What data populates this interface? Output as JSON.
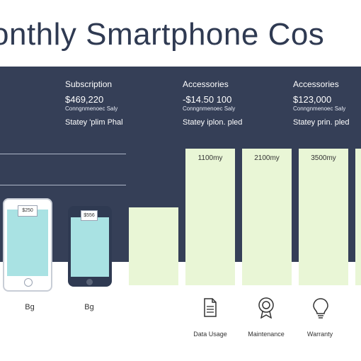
{
  "chart_data": {
    "type": "bar",
    "title": "onthly Smartphone Cos",
    "columns": [
      {
        "label": "Subscription",
        "amount": "$469,220",
        "note": "Conngnmenoec Saly",
        "sub": "Statey 'plim Phal"
      },
      {
        "label": "Accessories",
        "amount": "-$14.50 100",
        "note": "Conngnmenoec Saly",
        "sub": "Statey iplon. pled"
      },
      {
        "label": "Accessories",
        "amount": "$123,000",
        "note": "Conngnmenoec Saly",
        "sub": "Statey prin. pled"
      }
    ],
    "categories": [
      "",
      "1100my",
      "2100my",
      "3500my",
      ""
    ],
    "bar_labels": [
      "",
      "1100my",
      "2100my",
      "3500my",
      ""
    ],
    "values": [
      0.57,
      1.0,
      1.0,
      1.0,
      1.0
    ],
    "phones": [
      {
        "price": "$250",
        "label": "Bg"
      },
      {
        "price": "$556",
        "label": "Bg"
      }
    ],
    "icons": [
      {
        "name": "document-icon",
        "label": "Data Usage"
      },
      {
        "name": "badge-icon",
        "label": "Maintenance"
      },
      {
        "name": "lightbulb-icon",
        "label": "Warranty"
      }
    ]
  },
  "colors": {
    "band": "#353f57",
    "bar": "#e9f6d6",
    "screen": "#a9e2e3",
    "title": "#2f3a52"
  }
}
